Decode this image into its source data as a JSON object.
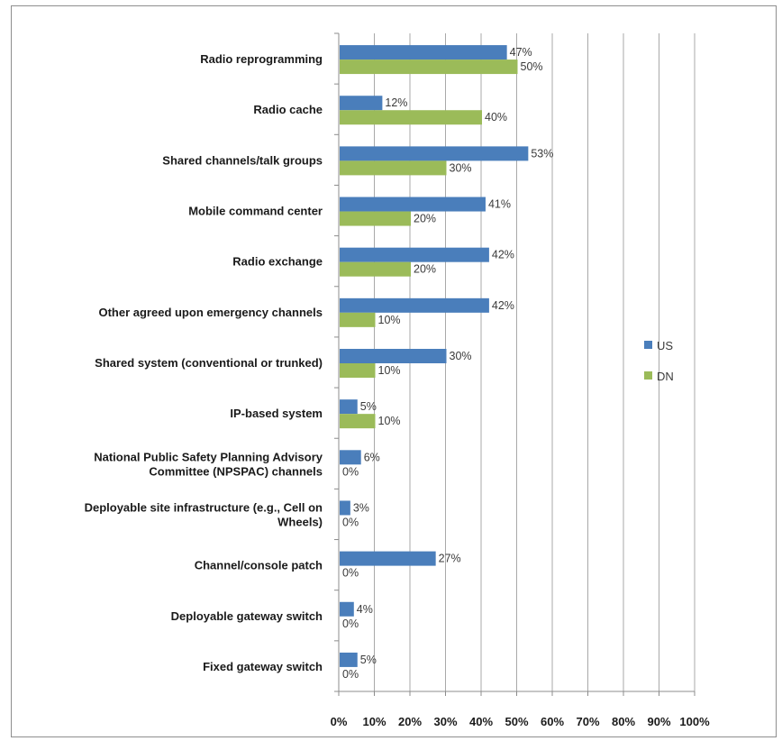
{
  "chart_data": {
    "type": "bar",
    "orientation": "horizontal",
    "categories": [
      [
        "Radio reprogramming"
      ],
      [
        "Radio cache"
      ],
      [
        "Shared channels/talk groups"
      ],
      [
        "Mobile command center"
      ],
      [
        "Radio exchange"
      ],
      [
        "Other agreed upon emergency channels"
      ],
      [
        "Shared system (conventional or trunked)"
      ],
      [
        "IP-based system"
      ],
      [
        "National Public Safety Planning Advisory",
        "Committee (NPSPAC) channels"
      ],
      [
        "Deployable site infrastructure (e.g., Cell on",
        "Wheels)"
      ],
      [
        "Channel/console patch"
      ],
      [
        "Deployable gateway switch"
      ],
      [
        "Fixed gateway switch"
      ]
    ],
    "series": [
      {
        "name": "US",
        "color": "#4a7ebb",
        "values": [
          47,
          12,
          53,
          41,
          42,
          42,
          30,
          5,
          6,
          3,
          27,
          4,
          5
        ]
      },
      {
        "name": "DN",
        "color": "#9bbb59",
        "values": [
          50,
          40,
          30,
          20,
          20,
          10,
          10,
          10,
          0,
          0,
          0,
          0,
          0
        ]
      }
    ],
    "xlim": [
      0,
      100
    ],
    "x_ticks": [
      "0%",
      "10%",
      "20%",
      "30%",
      "40%",
      "50%",
      "60%",
      "70%",
      "80%",
      "90%",
      "100%"
    ],
    "value_suffix": "%",
    "grid": true,
    "legend_position": "right"
  }
}
